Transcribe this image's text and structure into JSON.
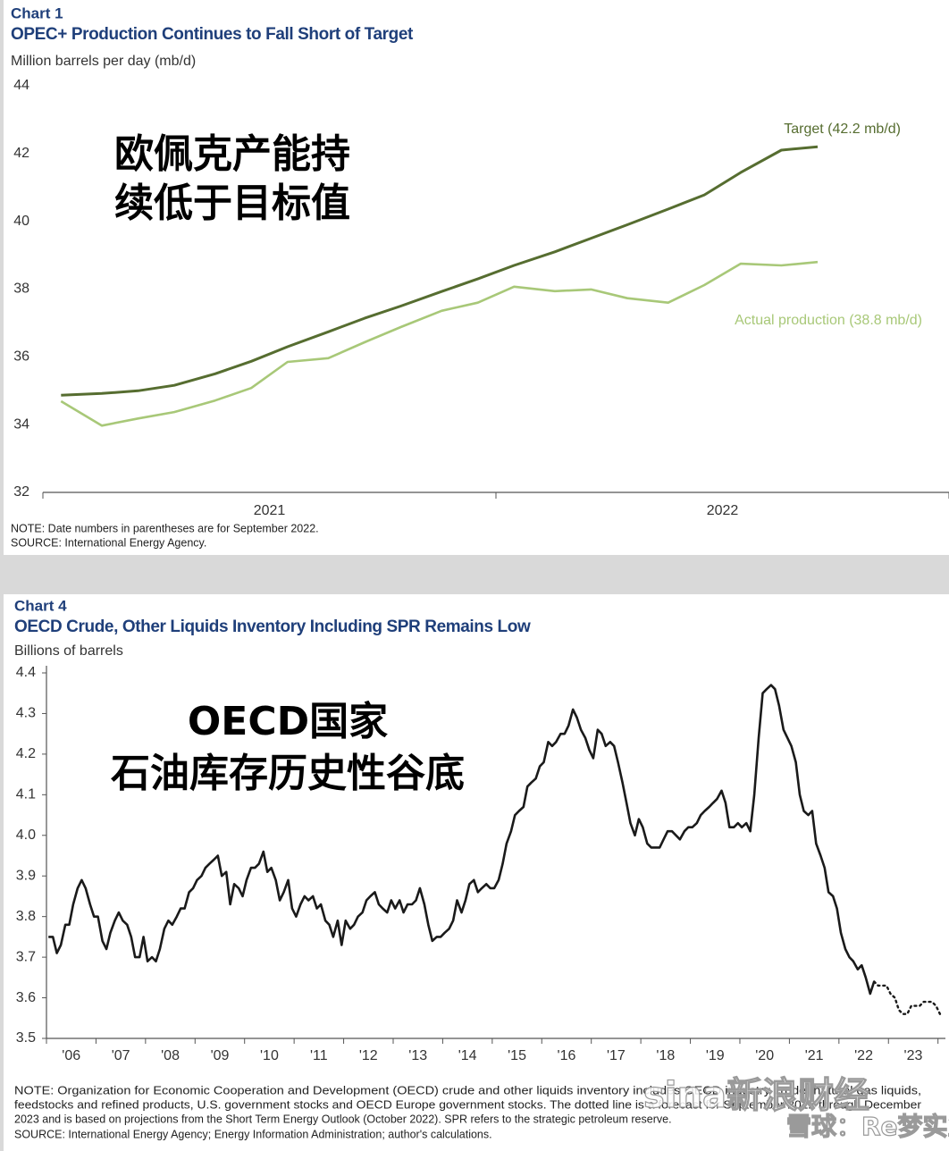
{
  "chart_data": [
    {
      "type": "line",
      "label": "Chart 1",
      "title": "OPEC+ Production Continues to Fall Short of Target",
      "ylabel": "Million barrels per day (mb/d)",
      "annotations": [
        "欧佩克产能持",
        "续低于目标值"
      ],
      "x": [
        2021.04,
        2021.13,
        2021.21,
        2021.29,
        2021.38,
        2021.46,
        2021.54,
        2021.63,
        2021.71,
        2021.79,
        2021.88,
        2021.96,
        2022.04,
        2022.13,
        2022.21,
        2022.29,
        2022.38,
        2022.46,
        2022.54,
        2022.63,
        2022.71
      ],
      "xlim": [
        2021,
        2023
      ],
      "xticks": [
        2021,
        2022,
        2023
      ],
      "year_labels": [
        "2021",
        "2022"
      ],
      "ylim": [
        32,
        44
      ],
      "yticks": [
        32,
        34,
        36,
        38,
        40,
        42,
        44
      ],
      "series": [
        {
          "name": "Target (42.2 mb/d)",
          "color": "#566d30",
          "values": [
            34.87,
            34.92,
            35.0,
            35.16,
            35.5,
            35.87,
            36.3,
            36.74,
            37.14,
            37.5,
            37.93,
            38.3,
            38.7,
            39.1,
            39.5,
            39.9,
            40.36,
            40.78,
            41.44,
            42.1,
            42.2
          ]
        },
        {
          "name": "Actual production (38.8 mb/d)",
          "color": "#a8c878",
          "values": [
            34.69,
            33.97,
            34.18,
            34.37,
            34.71,
            35.08,
            35.85,
            35.96,
            36.43,
            36.88,
            37.36,
            37.6,
            38.07,
            37.94,
            37.99,
            37.73,
            37.6,
            38.12,
            38.75,
            38.7,
            38.8
          ]
        }
      ],
      "notes": [
        "NOTE: Date numbers in parentheses are for September 2022.",
        "SOURCE: International  Energy Agency."
      ]
    },
    {
      "type": "line",
      "label": "Chart 4",
      "title": "OECD Crude, Other Liquids Inventory Including SPR Remains Low",
      "ylabel": "Billions of barrels",
      "annotations": [
        "OECD国家",
        "石油库存历史性谷底"
      ],
      "xlim": [
        2006,
        2024.15
      ],
      "xticks": [
        2006,
        2007,
        2008,
        2009,
        2010,
        2011,
        2012,
        2013,
        2014,
        2015,
        2016,
        2017,
        2018,
        2019,
        2020,
        2021,
        2022,
        2023,
        2024
      ],
      "year_labels": [
        "'06",
        "'07",
        "'08",
        "'09",
        "'10",
        "'11",
        "'12",
        "'13",
        "'14",
        "'15",
        "'16",
        "'17",
        "'18",
        "'19",
        "'20",
        "'21",
        "'22",
        "'23"
      ],
      "ylim": [
        3.5,
        4.4
      ],
      "yticks": [
        3.5,
        3.6,
        3.7,
        3.8,
        3.9,
        {
          "value": 4,
          "label": "4.0"
        },
        4.1,
        4.2,
        4.3,
        4.4
      ],
      "series": [
        {
          "color": "#1a1a1a",
          "linestyle": "solid",
          "x": [
            2006.04,
            2006.13,
            2006.21,
            2006.29,
            2006.38,
            2006.46,
            2006.54,
            2006.63,
            2006.71,
            2006.79,
            2006.88,
            2006.96,
            2007.04,
            2007.13,
            2007.21,
            2007.29,
            2007.38,
            2007.46,
            2007.54,
            2007.63,
            2007.71,
            2007.79,
            2007.88,
            2007.96,
            2008.04,
            2008.13,
            2008.21,
            2008.29,
            2008.38,
            2008.46,
            2008.54,
            2008.63,
            2008.71,
            2008.79,
            2008.88,
            2008.96,
            2009.04,
            2009.13,
            2009.21,
            2009.29,
            2009.38,
            2009.46,
            2009.54,
            2009.63,
            2009.71,
            2009.79,
            2009.88,
            2009.96,
            2010.04,
            2010.13,
            2010.21,
            2010.29,
            2010.38,
            2010.46,
            2010.54,
            2010.63,
            2010.71,
            2010.79,
            2010.88,
            2010.96,
            2011.04,
            2011.13,
            2011.21,
            2011.29,
            2011.38,
            2011.46,
            2011.54,
            2011.63,
            2011.71,
            2011.79,
            2011.88,
            2011.96,
            2012.04,
            2012.13,
            2012.21,
            2012.29,
            2012.38,
            2012.46,
            2012.54,
            2012.63,
            2012.71,
            2012.79,
            2012.88,
            2012.96,
            2013.04,
            2013.13,
            2013.21,
            2013.29,
            2013.38,
            2013.46,
            2013.54,
            2013.63,
            2013.71,
            2013.79,
            2013.88,
            2013.96,
            2014.04,
            2014.13,
            2014.21,
            2014.29,
            2014.38,
            2014.46,
            2014.54,
            2014.63,
            2014.71,
            2014.79,
            2014.88,
            2014.96,
            2015.04,
            2015.13,
            2015.21,
            2015.29,
            2015.38,
            2015.46,
            2015.54,
            2015.63,
            2015.71,
            2015.79,
            2015.88,
            2015.96,
            2016.04,
            2016.13,
            2016.21,
            2016.29,
            2016.38,
            2016.46,
            2016.54,
            2016.63,
            2016.71,
            2016.79,
            2016.88,
            2016.96,
            2017.04,
            2017.13,
            2017.21,
            2017.29,
            2017.38,
            2017.46,
            2017.54,
            2017.63,
            2017.71,
            2017.79,
            2017.88,
            2017.96,
            2018.04,
            2018.13,
            2018.21,
            2018.29,
            2018.38,
            2018.46,
            2018.54,
            2018.63,
            2018.71,
            2018.79,
            2018.88,
            2018.96,
            2019.04,
            2019.13,
            2019.21,
            2019.29,
            2019.38,
            2019.46,
            2019.54,
            2019.63,
            2019.71,
            2019.79,
            2019.88,
            2019.96,
            2020.04,
            2020.13,
            2020.21,
            2020.29,
            2020.38,
            2020.46,
            2020.54,
            2020.63,
            2020.71,
            2020.79,
            2020.88,
            2020.96,
            2021.04,
            2021.13,
            2021.21,
            2021.29,
            2021.38,
            2021.46,
            2021.54,
            2021.63,
            2021.71,
            2021.79,
            2021.88,
            2021.96,
            2022.04,
            2022.13,
            2022.21,
            2022.29,
            2022.38,
            2022.46,
            2022.54,
            2022.63,
            2022.71
          ],
          "values": [
            3.75,
            3.75,
            3.71,
            3.73,
            3.78,
            3.78,
            3.83,
            3.87,
            3.89,
            3.87,
            3.83,
            3.8,
            3.8,
            3.74,
            3.72,
            3.76,
            3.79,
            3.81,
            3.79,
            3.78,
            3.75,
            3.7,
            3.7,
            3.75,
            3.69,
            3.7,
            3.69,
            3.72,
            3.77,
            3.79,
            3.78,
            3.8,
            3.82,
            3.82,
            3.86,
            3.87,
            3.89,
            3.9,
            3.92,
            3.93,
            3.94,
            3.95,
            3.9,
            3.91,
            3.83,
            3.88,
            3.87,
            3.85,
            3.89,
            3.92,
            3.92,
            3.93,
            3.96,
            3.91,
            3.92,
            3.89,
            3.84,
            3.86,
            3.89,
            3.82,
            3.8,
            3.83,
            3.85,
            3.84,
            3.85,
            3.82,
            3.83,
            3.79,
            3.78,
            3.75,
            3.79,
            3.73,
            3.79,
            3.77,
            3.78,
            3.8,
            3.81,
            3.84,
            3.85,
            3.86,
            3.83,
            3.82,
            3.81,
            3.84,
            3.82,
            3.84,
            3.81,
            3.83,
            3.83,
            3.84,
            3.87,
            3.83,
            3.78,
            3.74,
            3.75,
            3.75,
            3.76,
            3.77,
            3.79,
            3.84,
            3.81,
            3.84,
            3.88,
            3.89,
            3.86,
            3.87,
            3.88,
            3.87,
            3.87,
            3.89,
            3.93,
            3.98,
            4.01,
            4.05,
            4.06,
            4.07,
            4.12,
            4.13,
            4.14,
            4.17,
            4.18,
            4.23,
            4.22,
            4.23,
            4.25,
            4.25,
            4.27,
            4.31,
            4.29,
            4.26,
            4.24,
            4.21,
            4.19,
            4.26,
            4.25,
            4.22,
            4.23,
            4.22,
            4.18,
            4.13,
            4.08,
            4.03,
            4.0,
            4.04,
            4.02,
            3.98,
            3.97,
            3.97,
            3.97,
            3.99,
            4.01,
            4.01,
            4.0,
            3.99,
            4.01,
            4.02,
            4.02,
            4.03,
            4.05,
            4.06,
            4.07,
            4.08,
            4.09,
            4.11,
            4.08,
            4.02,
            4.02,
            4.03,
            4.02,
            4.03,
            4.01,
            4.1,
            4.24,
            4.35,
            4.36,
            4.37,
            4.36,
            4.32,
            4.26,
            4.24,
            4.22,
            4.18,
            4.1,
            4.06,
            4.05,
            4.06,
            3.98,
            3.95,
            3.92,
            3.86,
            3.85,
            3.82,
            3.76,
            3.72,
            3.7,
            3.69,
            3.67,
            3.68,
            3.65,
            3.61,
            3.64
          ]
        },
        {
          "color": "#1a1a1a",
          "linestyle": "dotted",
          "x": [
            2022.71,
            2022.79,
            2022.88,
            2022.96,
            2023.04,
            2023.13,
            2023.21,
            2023.29,
            2023.38,
            2023.46,
            2023.54,
            2023.63,
            2023.71,
            2023.79,
            2023.88,
            2023.96,
            2024.04
          ],
          "values": [
            3.64,
            3.63,
            3.63,
            3.63,
            3.61,
            3.6,
            3.57,
            3.56,
            3.56,
            3.58,
            3.58,
            3.58,
            3.59,
            3.59,
            3.59,
            3.58,
            3.56
          ]
        }
      ],
      "notes": [
        "NOTE: Organization for Economic Cooperation and Development (OECD) crude and other liquids inventory includes OECD industry crude, natural gas liquids,",
        "feedstocks and refined products, U.S. government stocks and OECD Europe government stocks. The dotted line is a forecast for September 2022 through December",
        "2023 and is based on projections from the Short Term Energy Outlook (October 2022). SPR refers to the strategic petroleum reserve.",
        "SOURCE: International Energy Agency; Energy Information Administration; author's calculations."
      ]
    }
  ],
  "watermark": [
    "sina新浪财经",
    "雪球：Re梦实业"
  ]
}
